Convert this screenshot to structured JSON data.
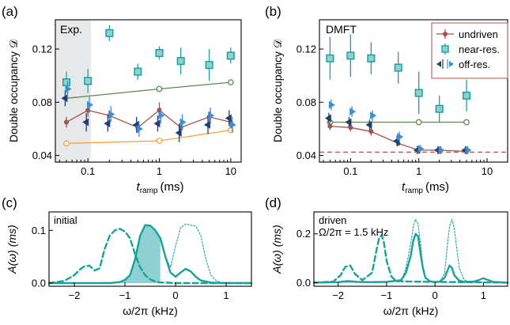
{
  "colors": {
    "undriven": "#a5514b",
    "near_res": "#1aa29a",
    "off_res_dark": "#1f3f73",
    "off_res_light": "#3a8fd6",
    "green_line": "#5e8a4f",
    "orange": "#f4a340",
    "teal_fill": "#8fd0d2",
    "exp_shade": "#e6e8ea",
    "dashed_red": "#b7524b"
  },
  "chart_data": [
    {
      "panel": "(a)",
      "type": "scatter",
      "x_scale": "log",
      "xlim": [
        0.035,
        14
      ],
      "ylim": [
        0.035,
        0.142
      ],
      "xlabel": "t",
      "xlabel_sub": "ramp",
      "xlabel_unit": "(ms)",
      "ylabel": "Double occupancy 𝒟",
      "xticks": [
        {
          "v": 0.1,
          "label": "0.1"
        },
        {
          "v": 1,
          "label": "1"
        },
        {
          "v": 10,
          "label": "10"
        }
      ],
      "yticks": [
        {
          "v": 0.04,
          "label": "0.04"
        },
        {
          "v": 0.08,
          "label": "0.08"
        },
        {
          "v": 0.12,
          "label": "0.12"
        }
      ],
      "shade": {
        "x0": 0.035,
        "x1": 0.11,
        "label": "Exp."
      },
      "series": [
        {
          "key": "green_fit",
          "kind": "line",
          "x": [
            0.05,
            1,
            10
          ],
          "y": [
            0.083,
            0.09,
            0.095
          ],
          "markers": [
            1,
            10
          ]
        },
        {
          "key": "orange_fit",
          "kind": "line",
          "x": [
            0.05,
            1,
            10
          ],
          "y": [
            0.049,
            0.051,
            0.059
          ],
          "markers": [
            0.05,
            1,
            10
          ]
        },
        {
          "key": "undriven",
          "kind": "line_err",
          "x": [
            0.05,
            0.1,
            0.2,
            0.5,
            1,
            2,
            5,
            10
          ],
          "y": [
            0.065,
            0.074,
            0.07,
            0.061,
            0.074,
            0.061,
            0.069,
            0.065
          ],
          "err": [
            0.004,
            0.005,
            0.004,
            0.004,
            0.006,
            0.004,
            0.004,
            0.004
          ]
        },
        {
          "key": "near_res",
          "kind": "square",
          "x": [
            0.05,
            0.1,
            0.2,
            0.5,
            1,
            2,
            5,
            10
          ],
          "y": [
            0.095,
            0.096,
            0.132,
            0.103,
            0.117,
            0.111,
            0.108,
            0.115
          ],
          "err": [
            0.008,
            0.009,
            0.006,
            0.006,
            0.005,
            0.01,
            0.012,
            0.006
          ]
        },
        {
          "key": "off_left",
          "kind": "tri_left",
          "x": [
            0.048,
            0.095,
            0.19,
            0.48,
            0.95,
            1.9,
            4.8,
            9.5
          ],
          "y": [
            0.083,
            0.065,
            0.064,
            0.063,
            0.064,
            0.057,
            0.063,
            0.068
          ],
          "err": [
            0.006,
            0.007,
            0.006,
            0.006,
            0.006,
            0.007,
            0.007,
            0.006
          ]
        },
        {
          "key": "off_right",
          "kind": "tri_right",
          "x": [
            0.052,
            0.105,
            0.21,
            0.52,
            1.05,
            2.1,
            5.2,
            10.5
          ],
          "y": [
            0.09,
            0.078,
            0.071,
            0.06,
            0.07,
            0.065,
            0.07,
            0.063
          ],
          "err": [
            0.006,
            0.006,
            0.006,
            0.006,
            0.006,
            0.006,
            0.006,
            0.006
          ]
        }
      ]
    },
    {
      "panel": "(b)",
      "type": "scatter",
      "x_scale": "log",
      "xlim": [
        0.035,
        20
      ],
      "ylim": [
        0.035,
        0.142
      ],
      "xlabel": "t",
      "xlabel_sub": "ramp",
      "xlabel_unit": "(ms)",
      "ylabel": "Double occupancy 𝒟",
      "xticks": [
        {
          "v": 0.1,
          "label": "0.1"
        },
        {
          "v": 1,
          "label": "1"
        },
        {
          "v": 10,
          "label": "10"
        }
      ],
      "yticks": [
        {
          "v": 0.04,
          "label": "0.04"
        },
        {
          "v": 0.08,
          "label": "0.08"
        },
        {
          "v": 0.12,
          "label": "0.12"
        }
      ],
      "inset_label": "DMFT",
      "legend": {
        "position": "top-right",
        "entries": [
          "undriven",
          "near-res.",
          "off-res."
        ]
      },
      "hline": {
        "y": 0.0425
      },
      "series": [
        {
          "key": "green_fit",
          "kind": "line",
          "x": [
            0.05,
            1,
            5
          ],
          "y": [
            0.065,
            0.065,
            0.065
          ],
          "markers": [
            0.05,
            1,
            5
          ]
        },
        {
          "key": "undriven",
          "kind": "line_err",
          "x": [
            0.05,
            0.1,
            0.2,
            0.5,
            1,
            2,
            5
          ],
          "y": [
            0.062,
            0.061,
            0.058,
            0.049,
            0.044,
            0.044,
            0.043
          ],
          "err": [
            0.003,
            0.003,
            0.003,
            0.002,
            0.002,
            0.002,
            0.002
          ]
        },
        {
          "key": "near_res",
          "kind": "square",
          "x": [
            0.05,
            0.1,
            0.2,
            0.5,
            1,
            2,
            5
          ],
          "y": [
            0.113,
            0.115,
            0.113,
            0.106,
            0.087,
            0.075,
            0.085
          ],
          "err": [
            0.016,
            0.016,
            0.012,
            0.012,
            0.016,
            0.01,
            0.012
          ]
        },
        {
          "key": "off_left",
          "kind": "tri_left",
          "x": [
            0.048,
            0.095,
            0.19,
            0.48,
            0.95,
            1.9,
            4.8
          ],
          "y": [
            0.068,
            0.065,
            0.063,
            0.051,
            0.044,
            0.044,
            0.044
          ],
          "err": [
            0.004,
            0.004,
            0.004,
            0.004,
            0.003,
            0.003,
            0.003
          ]
        },
        {
          "key": "off_right",
          "kind": "tri_right",
          "x": [
            0.052,
            0.105,
            0.21,
            0.52,
            1.05,
            2.1,
            5.2
          ],
          "y": [
            0.078,
            0.073,
            0.07,
            0.054,
            0.045,
            0.044,
            0.044
          ],
          "err": [
            0.004,
            0.004,
            0.004,
            0.004,
            0.003,
            0.003,
            0.003
          ]
        }
      ]
    },
    {
      "panel": "(c)",
      "type": "line",
      "xlim": [
        -2.5,
        1.5
      ],
      "ylim": [
        -0.006,
        0.135
      ],
      "xlabel": "ω/2π (kHz)",
      "ylabel": "A(ω) (ms)",
      "xticks": [
        {
          "v": -2,
          "label": "−2"
        },
        {
          "v": -1,
          "label": "−1"
        },
        {
          "v": 0,
          "label": "0"
        },
        {
          "v": 1,
          "label": "1"
        }
      ],
      "yticks": [
        {
          "v": 0,
          "label": "0.0"
        },
        {
          "v": 0.1,
          "label": "0.1"
        }
      ],
      "inset_label": "initial",
      "fill_below_x": -0.3,
      "series": [
        {
          "key": "solid",
          "x": [
            -2.5,
            -2,
            -1.6,
            -1.3,
            -1.1,
            -1,
            -0.9,
            -0.8,
            -0.7,
            -0.6,
            -0.5,
            -0.4,
            -0.3,
            -0.2,
            -0.1,
            0,
            0.1,
            0.2,
            0.3,
            0.4,
            0.5,
            0.7,
            1,
            1.5
          ],
          "y": [
            0,
            0,
            0,
            0,
            0.002,
            0.006,
            0.015,
            0.045,
            0.09,
            0.11,
            0.109,
            0.1,
            0.085,
            0.05,
            0.02,
            0.012,
            0.02,
            0.027,
            0.022,
            0.012,
            0.005,
            0.001,
            0,
            0
          ]
        },
        {
          "key": "dashed",
          "x": [
            -2.5,
            -2.2,
            -2,
            -1.9,
            -1.8,
            -1.7,
            -1.6,
            -1.5,
            -1.4,
            -1.3,
            -1.2,
            -1.1,
            -1,
            -0.9,
            -0.8,
            -0.7,
            -0.6,
            -0.5,
            -0.4,
            -0.3,
            -0.2,
            0,
            0.5,
            1.5
          ],
          "y": [
            0,
            0.004,
            0.015,
            0.025,
            0.032,
            0.033,
            0.024,
            0.028,
            0.065,
            0.09,
            0.1,
            0.103,
            0.098,
            0.085,
            0.055,
            0.03,
            0.015,
            0.007,
            0.003,
            0.001,
            0.001,
            0,
            0,
            0
          ]
        },
        {
          "key": "dotted",
          "x": [
            -2.5,
            -1.1,
            -1,
            -0.9,
            -0.8,
            -0.7,
            -0.6,
            -0.5,
            -0.4,
            -0.3,
            -0.2,
            -0.1,
            0,
            0.1,
            0.2,
            0.3,
            0.4,
            0.5,
            0.6,
            0.7,
            0.8,
            0.9,
            1.5
          ],
          "y": [
            0,
            0.001,
            0.006,
            0.015,
            0.045,
            0.09,
            0.11,
            0.109,
            0.1,
            0.085,
            0.05,
            0.03,
            0.07,
            0.105,
            0.112,
            0.11,
            0.108,
            0.09,
            0.045,
            0.015,
            0.005,
            0.001,
            0
          ]
        }
      ]
    },
    {
      "panel": "(d)",
      "type": "line",
      "xlim": [
        -2.5,
        1.5
      ],
      "ylim": [
        -0.015,
        0.29
      ],
      "xlabel": "ω/2π (kHz)",
      "ylabel": "A(ω) (ms)",
      "xticks": [
        {
          "v": -2,
          "label": "−2"
        },
        {
          "v": -1,
          "label": "−1"
        },
        {
          "v": 0,
          "label": "0"
        },
        {
          "v": 1,
          "label": "1"
        }
      ],
      "yticks": [
        {
          "v": 0,
          "label": "0.0"
        },
        {
          "v": 0.2,
          "label": "0.2"
        }
      ],
      "inset_label": "driven",
      "inset_label2": "Ω/2π = 1.5 kHz",
      "series": [
        {
          "key": "solid",
          "x": [
            -2.5,
            -2,
            -1.8,
            -1.6,
            -1.4,
            -1,
            -0.7,
            -0.6,
            -0.5,
            -0.45,
            -0.4,
            -0.35,
            -0.3,
            -0.25,
            -0.2,
            -0.1,
            0,
            0.1,
            0.2,
            0.25,
            0.3,
            0.35,
            0.4,
            0.5,
            0.6,
            0.8,
            0.9,
            1,
            1.1,
            1.2,
            1.5
          ],
          "y": [
            0,
            0.002,
            0.006,
            0.003,
            0.002,
            0.003,
            0.01,
            0.04,
            0.11,
            0.17,
            0.2,
            0.19,
            0.12,
            0.06,
            0.02,
            0.005,
            0.002,
            0.004,
            0.02,
            0.045,
            0.07,
            0.06,
            0.03,
            0.008,
            0.003,
            0.004,
            0.01,
            0.018,
            0.01,
            0.003,
            0
          ]
        },
        {
          "key": "dashed",
          "x": [
            -2.5,
            -2.1,
            -1.95,
            -1.85,
            -1.75,
            -1.65,
            -1.5,
            -1.3,
            -1.2,
            -1.15,
            -1.1,
            -1.05,
            -1,
            -0.9,
            -0.8,
            -0.5,
            0,
            1.5
          ],
          "y": [
            0,
            0.004,
            0.03,
            0.065,
            0.07,
            0.035,
            0.01,
            0.04,
            0.14,
            0.185,
            0.195,
            0.16,
            0.09,
            0.025,
            0.006,
            0.004,
            0.003,
            0
          ]
        },
        {
          "key": "dotted",
          "x": [
            -2.5,
            -0.7,
            -0.6,
            -0.5,
            -0.45,
            -0.4,
            -0.35,
            -0.3,
            -0.25,
            -0.2,
            -0.1,
            0,
            0.1,
            0.2,
            0.25,
            0.3,
            0.35,
            0.4,
            0.45,
            0.5,
            0.6,
            0.7,
            1.5
          ],
          "y": [
            0,
            0.004,
            0.06,
            0.16,
            0.23,
            0.26,
            0.24,
            0.16,
            0.07,
            0.02,
            0.004,
            0.002,
            0.004,
            0.04,
            0.14,
            0.23,
            0.26,
            0.22,
            0.14,
            0.06,
            0.012,
            0.003,
            0
          ]
        }
      ]
    }
  ]
}
